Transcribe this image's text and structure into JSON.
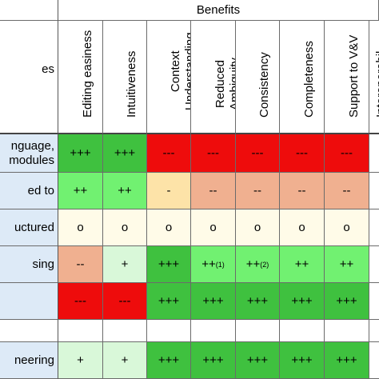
{
  "header": {
    "group_label": "Benefits",
    "corner_label": "es",
    "columns": [
      {
        "lines": [
          "Editing easiness"
        ]
      },
      {
        "lines": [
          "Intuitiveness"
        ]
      },
      {
        "lines": [
          "Context",
          "Understanding"
        ]
      },
      {
        "lines": [
          "Reduced",
          "Ambiguity"
        ]
      },
      {
        "lines": [
          "Consistency"
        ]
      },
      {
        "lines": [
          "Completeness"
        ]
      },
      {
        "lines": [
          "Support to V&V"
        ]
      },
      {
        "lines": [
          "Interoperabil"
        ]
      }
    ]
  },
  "rows": [
    {
      "label_lines": [
        "nguage,",
        "modules"
      ],
      "cells": [
        "+++",
        "+++",
        "---",
        "---",
        "---",
        "---",
        "---",
        ""
      ]
    },
    {
      "label_lines": [
        "ed to",
        ""
      ],
      "cells": [
        "++",
        "++",
        "-",
        "--",
        "--",
        "--",
        "--",
        ""
      ]
    },
    {
      "label_lines": [
        "uctured",
        ""
      ],
      "cells": [
        "o",
        "o",
        "o",
        "o",
        "o",
        "o",
        "o",
        ""
      ]
    },
    {
      "label_lines": [
        "sing",
        ""
      ],
      "cells": [
        "--",
        "+",
        "+++",
        "++",
        "++",
        "++",
        "++",
        ""
      ],
      "superscripts": {
        "3": "(1)",
        "4": "(2)"
      }
    },
    {
      "label_lines": [
        "",
        ""
      ],
      "cells": [
        "---",
        "---",
        "+++",
        "+++",
        "+++",
        "+++",
        "+++",
        ""
      ]
    },
    {
      "label_lines": [
        "",
        ""
      ],
      "cells": [
        "",
        "",
        "",
        "",
        "",
        "",
        "",
        ""
      ]
    },
    {
      "label_lines": [
        "neering",
        ""
      ],
      "cells": [
        "+",
        "+",
        "+++",
        "+++",
        "+++",
        "+++",
        "+++",
        ""
      ]
    }
  ],
  "colors": {
    "+++": "#3fc13f",
    "++": "#71f171",
    "+": "#d9f8d9",
    "o": "#fffbe8",
    "-": "#fde3a8",
    "--": "#f0b090",
    "---": "#ee0c0c",
    "label_bg": "#ddeaf7",
    "empty_row": "#ffffff"
  }
}
